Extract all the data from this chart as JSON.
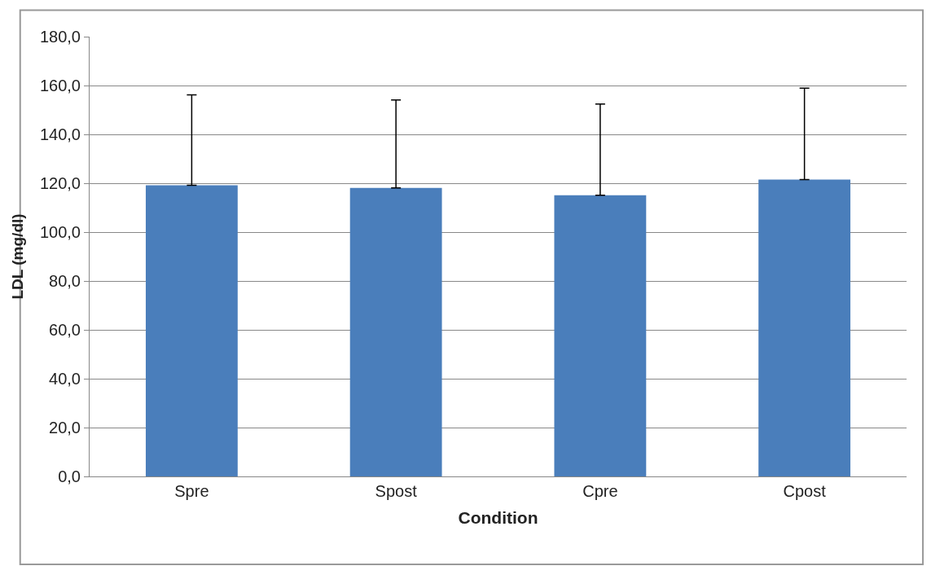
{
  "chart_data": {
    "type": "bar",
    "xlabel": "Condition",
    "ylabel": "LDL (mg/dl)",
    "categories": [
      "Spre",
      "Spost",
      "Cpre",
      "Cpost"
    ],
    "values": [
      119.2,
      118.1,
      115.1,
      121.5
    ],
    "errors": [
      [
        119.2,
        156.2
      ],
      [
        118.1,
        154.1
      ],
      [
        115.1,
        152.4
      ],
      [
        121.5,
        158.9
      ]
    ],
    "color": "#4a7ebb",
    "ylim": [
      0,
      180
    ],
    "yticks": [
      {
        "value": 0,
        "label": "0,0"
      },
      {
        "value": 20,
        "label": "20,0"
      },
      {
        "value": 40,
        "label": "40,0"
      },
      {
        "value": 60,
        "label": "60,0"
      },
      {
        "value": 80,
        "label": "80,0"
      },
      {
        "value": 100,
        "label": "100,0"
      },
      {
        "value": 120,
        "label": "120,0"
      },
      {
        "value": 140,
        "label": "140,0"
      },
      {
        "value": 160,
        "label": "160,0"
      },
      {
        "value": 180,
        "label": "180,0"
      }
    ],
    "grid": "y"
  }
}
